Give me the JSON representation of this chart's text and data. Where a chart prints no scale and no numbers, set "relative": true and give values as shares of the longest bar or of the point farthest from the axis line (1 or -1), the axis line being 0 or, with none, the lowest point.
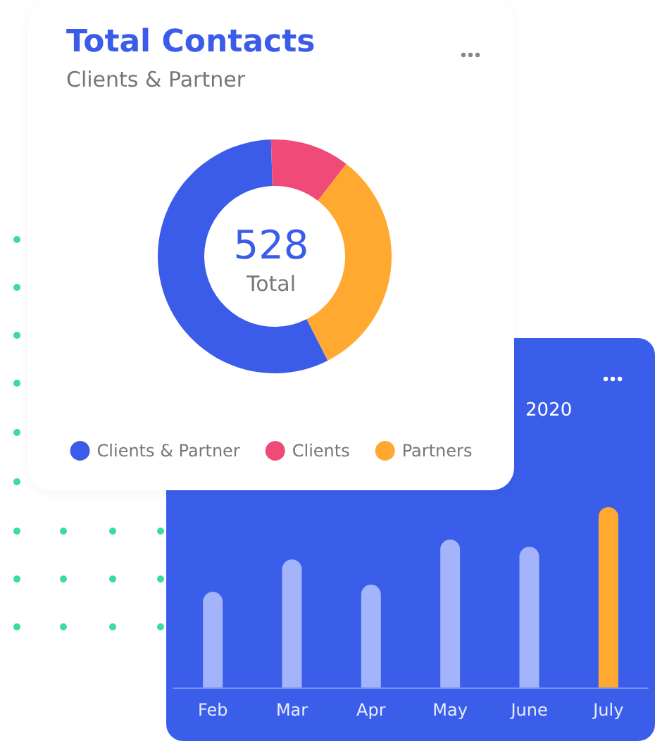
{
  "chart_data": [
    {
      "type": "donut",
      "title": "Total Contacts",
      "subtitle": "Clients & Partner",
      "annotations": [
        "528",
        "Total"
      ],
      "categories": [
        "Clients & Partner",
        "Clients",
        "Partners"
      ],
      "values": [
        57,
        11,
        32
      ],
      "colors": [
        "#3a5ce9",
        "#ef4a78",
        "#ffa931"
      ],
      "legend": "bottom"
    },
    {
      "type": "bar",
      "title": "2020",
      "categories": [
        "Feb",
        "Mar",
        "Apr",
        "May",
        "June",
        "July"
      ],
      "values": [
        0.53,
        0.71,
        0.57,
        0.82,
        0.78,
        1
      ],
      "colors": [
        "#a3b4fb",
        "#a3b4fb",
        "#a3b4fb",
        "#a3b4fb",
        "#a3b4fb",
        "#ffa931"
      ],
      "relative": true
    }
  ]
}
